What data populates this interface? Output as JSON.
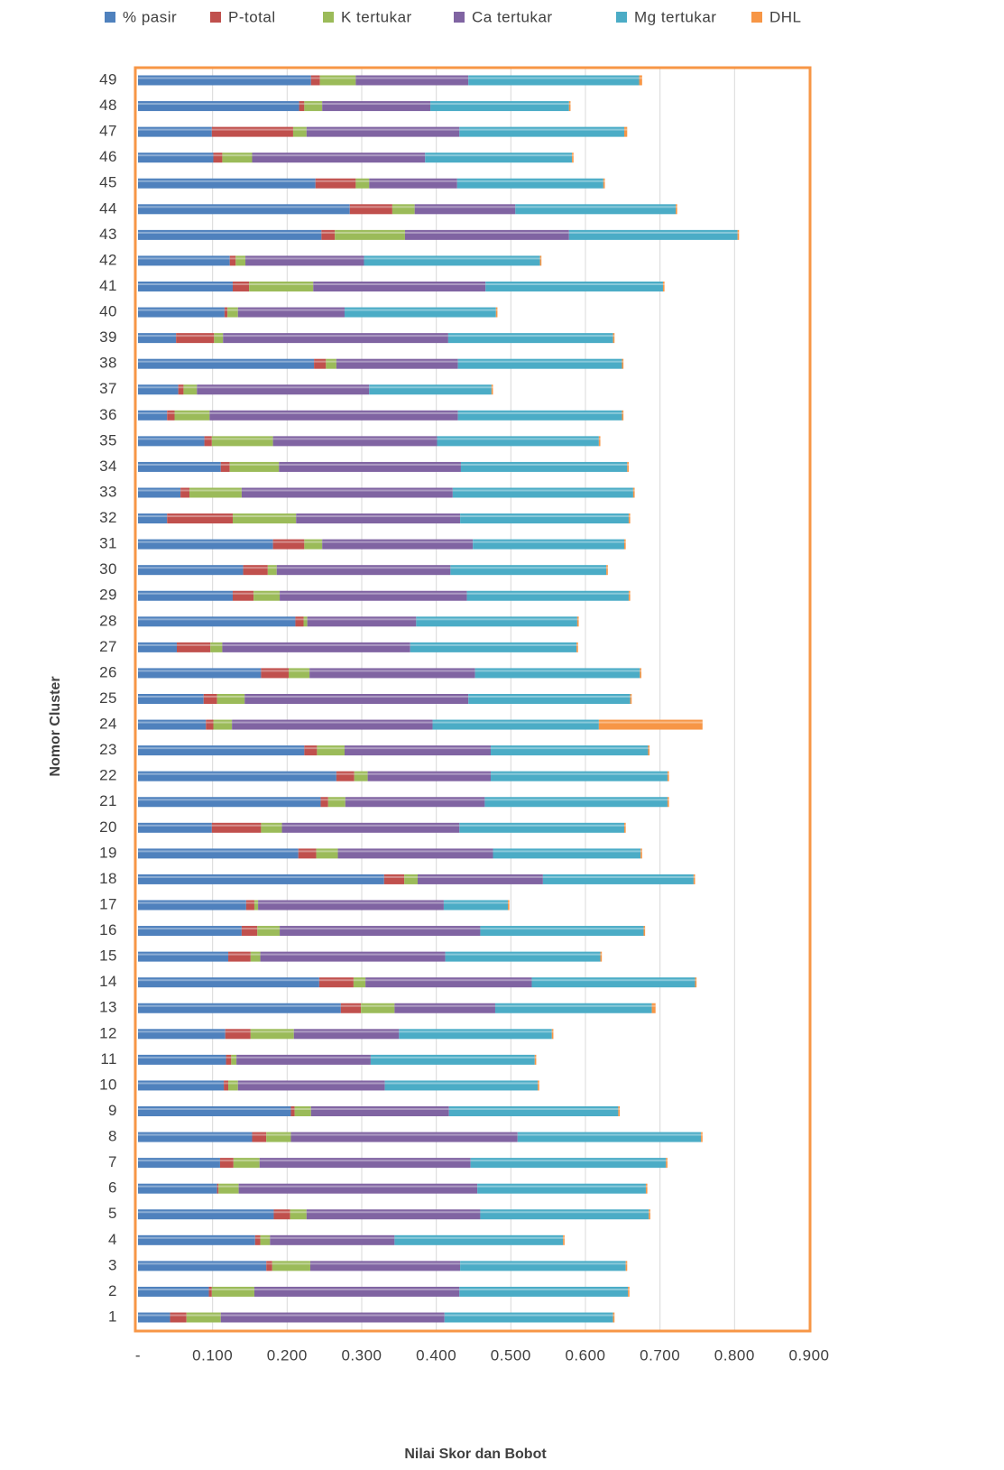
{
  "chart_data": {
    "type": "bar",
    "orientation": "horizontal",
    "stacked": true,
    "xlabel": "Nilai Skor dan Bobot",
    "ylabel": "Nomor Cluster",
    "categories": [
      "1",
      "2",
      "3",
      "4",
      "5",
      "6",
      "7",
      "8",
      "9",
      "10",
      "11",
      "12",
      "13",
      "14",
      "15",
      "16",
      "17",
      "18",
      "19",
      "20",
      "21",
      "22",
      "23",
      "24",
      "25",
      "26",
      "27",
      "28",
      "29",
      "30",
      "31",
      "32",
      "33",
      "34",
      "35",
      "36",
      "37",
      "38",
      "39",
      "40",
      "41",
      "42",
      "43",
      "44",
      "45",
      "46",
      "47",
      "48",
      "49"
    ],
    "series": [
      {
        "name": "% pasir",
        "color": "#4f81bd",
        "values": [
          0.043,
          0.095,
          0.172,
          0.157,
          0.182,
          0.106,
          0.11,
          0.153,
          0.205,
          0.115,
          0.118,
          0.117,
          0.272,
          0.243,
          0.121,
          0.139,
          0.145,
          0.33,
          0.215,
          0.099,
          0.245,
          0.266,
          0.223,
          0.091,
          0.088,
          0.165,
          0.052,
          0.211,
          0.127,
          0.141,
          0.181,
          0.039,
          0.057,
          0.111,
          0.089,
          0.039,
          0.054,
          0.236,
          0.051,
          0.116,
          0.127,
          0.123,
          0.246,
          0.284,
          0.238,
          0.101,
          0.099,
          0.216,
          0.232
        ]
      },
      {
        "name": "P-total",
        "color": "#c0504d",
        "values": [
          0.022,
          0.004,
          0.008,
          0.007,
          0.022,
          0.002,
          0.018,
          0.019,
          0.005,
          0.006,
          0.007,
          0.034,
          0.027,
          0.046,
          0.03,
          0.021,
          0.011,
          0.027,
          0.024,
          0.066,
          0.01,
          0.024,
          0.017,
          0.01,
          0.018,
          0.037,
          0.045,
          0.011,
          0.028,
          0.033,
          0.042,
          0.088,
          0.012,
          0.012,
          0.01,
          0.01,
          0.007,
          0.016,
          0.051,
          0.004,
          0.022,
          0.008,
          0.018,
          0.057,
          0.054,
          0.012,
          0.109,
          0.007,
          0.012
        ]
      },
      {
        "name": "K tertukar",
        "color": "#9bbb59",
        "values": [
          0.046,
          0.057,
          0.051,
          0.013,
          0.022,
          0.027,
          0.035,
          0.033,
          0.022,
          0.013,
          0.007,
          0.058,
          0.045,
          0.016,
          0.013,
          0.03,
          0.005,
          0.018,
          0.029,
          0.028,
          0.023,
          0.018,
          0.037,
          0.025,
          0.037,
          0.028,
          0.016,
          0.005,
          0.035,
          0.012,
          0.024,
          0.085,
          0.07,
          0.066,
          0.082,
          0.047,
          0.018,
          0.014,
          0.012,
          0.014,
          0.086,
          0.013,
          0.094,
          0.03,
          0.018,
          0.04,
          0.018,
          0.024,
          0.048
        ]
      },
      {
        "name": "Ca tertukar",
        "color": "#8064a2",
        "values": [
          0.3,
          0.275,
          0.201,
          0.167,
          0.233,
          0.32,
          0.283,
          0.304,
          0.185,
          0.197,
          0.18,
          0.141,
          0.135,
          0.223,
          0.248,
          0.269,
          0.249,
          0.168,
          0.208,
          0.238,
          0.187,
          0.165,
          0.196,
          0.269,
          0.3,
          0.222,
          0.252,
          0.146,
          0.251,
          0.233,
          0.202,
          0.22,
          0.283,
          0.244,
          0.22,
          0.333,
          0.231,
          0.163,
          0.302,
          0.143,
          0.231,
          0.159,
          0.22,
          0.135,
          0.118,
          0.232,
          0.205,
          0.145,
          0.151
        ]
      },
      {
        "name": "Mg tertukar",
        "color": "#4bacc6",
        "values": [
          0.226,
          0.226,
          0.222,
          0.226,
          0.226,
          0.226,
          0.262,
          0.246,
          0.227,
          0.205,
          0.22,
          0.205,
          0.21,
          0.219,
          0.208,
          0.219,
          0.086,
          0.202,
          0.198,
          0.221,
          0.245,
          0.237,
          0.211,
          0.223,
          0.217,
          0.221,
          0.223,
          0.216,
          0.217,
          0.209,
          0.203,
          0.226,
          0.242,
          0.223,
          0.217,
          0.22,
          0.164,
          0.22,
          0.221,
          0.203,
          0.238,
          0.236,
          0.226,
          0.215,
          0.196,
          0.197,
          0.221,
          0.186,
          0.229
        ]
      },
      {
        "name": "DHL",
        "color": "#f79646",
        "values": [
          0.002,
          0.002,
          0.002,
          0.002,
          0.002,
          0.002,
          0.002,
          0.002,
          0.002,
          0.002,
          0.002,
          0.002,
          0.005,
          0.002,
          0.002,
          0.002,
          0.002,
          0.002,
          0.002,
          0.002,
          0.002,
          0.002,
          0.002,
          0.139,
          0.002,
          0.002,
          0.002,
          0.002,
          0.002,
          0.002,
          0.002,
          0.002,
          0.002,
          0.002,
          0.002,
          0.002,
          0.002,
          0.002,
          0.002,
          0.002,
          0.002,
          0.002,
          0.002,
          0.002,
          0.002,
          0.002,
          0.004,
          0.002,
          0.004
        ]
      }
    ],
    "xlim": [
      0,
      0.9
    ],
    "xticks": [
      {
        "value": 0,
        "label": "-"
      },
      {
        "value": 0.1,
        "label": "0.100"
      },
      {
        "value": 0.2,
        "label": "0.200"
      },
      {
        "value": 0.3,
        "label": "0.300"
      },
      {
        "value": 0.4,
        "label": "0.400"
      },
      {
        "value": 0.5,
        "label": "0.500"
      },
      {
        "value": 0.6,
        "label": "0.600"
      },
      {
        "value": 0.7,
        "label": "0.700"
      },
      {
        "value": 0.8,
        "label": "0.800"
      },
      {
        "value": 0.9,
        "label": "0.900"
      }
    ],
    "grid": true,
    "legend": "top",
    "frame_color": "#f79646"
  }
}
